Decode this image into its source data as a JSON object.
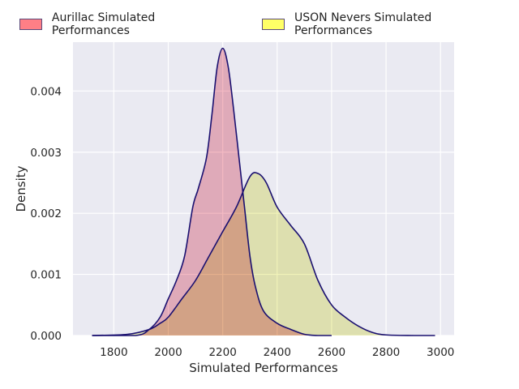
{
  "chart_data": {
    "type": "area",
    "title": "",
    "xlabel": "Simulated Performances",
    "ylabel": "Density",
    "xlim": [
      1650,
      3050
    ],
    "ylim": [
      0,
      0.0048
    ],
    "xticks": [
      1800,
      2000,
      2200,
      2400,
      2600,
      2800,
      3000
    ],
    "xtick_labels": [
      "1800",
      "2000",
      "2200",
      "2400",
      "2600",
      "2800",
      "3000"
    ],
    "yticks": [
      0,
      0.001,
      0.002,
      0.003,
      0.004
    ],
    "ytick_labels": [
      "0.000",
      "0.001",
      "0.002",
      "0.003",
      "0.004"
    ],
    "grid": true,
    "legend_position": "top",
    "series": [
      {
        "name": "Aurillac Simulated Performances",
        "color": "#ff7f86",
        "fill": "#ee9eac",
        "line": "#1a1070",
        "x": [
          1720,
          1880,
          1930,
          1970,
          2000,
          2030,
          2060,
          2090,
          2110,
          2140,
          2160,
          2180,
          2200,
          2220,
          2240,
          2260,
          2280,
          2300,
          2320,
          2350,
          2400,
          2450,
          2500,
          2550,
          2600
        ],
        "values": [
          0.0,
          0.0,
          0.0001,
          0.0003,
          0.0006,
          0.0009,
          0.0013,
          0.0021,
          0.0024,
          0.0029,
          0.0036,
          0.0044,
          0.0047,
          0.0044,
          0.0037,
          0.0029,
          0.0021,
          0.0013,
          0.0008,
          0.0004,
          0.0002,
          0.0001,
          2e-05,
          0.0,
          0.0
        ]
      },
      {
        "name": "USON Nevers Simulated Performances",
        "color": "#ffff66",
        "fill": "#ecee9e",
        "line": "#1a1070",
        "x": [
          1720,
          1850,
          1930,
          1970,
          2000,
          2050,
          2100,
          2150,
          2200,
          2250,
          2300,
          2330,
          2360,
          2400,
          2450,
          2500,
          2550,
          2600,
          2650,
          2700,
          2750,
          2800,
          2900,
          2980
        ],
        "values": [
          0.0,
          2e-05,
          0.0001,
          0.0002,
          0.0003,
          0.0006,
          0.0009,
          0.0013,
          0.0017,
          0.0021,
          0.0026,
          0.00265,
          0.0025,
          0.0021,
          0.0018,
          0.0015,
          0.0009,
          0.0005,
          0.0003,
          0.00015,
          5e-05,
          1e-05,
          0.0,
          0.0
        ]
      }
    ]
  }
}
